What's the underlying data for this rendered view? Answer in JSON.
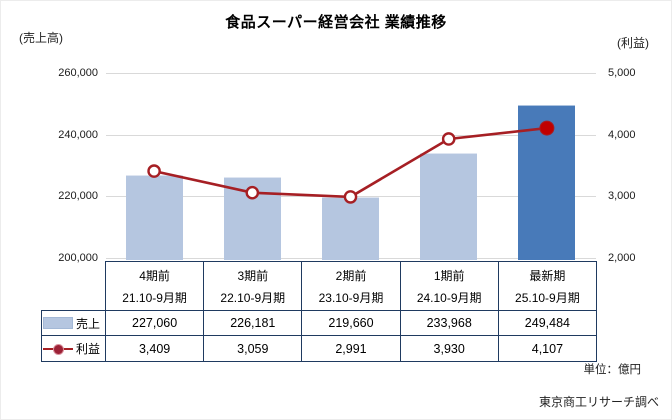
{
  "header": {
    "title": "食品スーパー経営会社 業績推移",
    "left_axis_unit": "(売上高)",
    "right_axis_unit": "(利益)"
  },
  "footer": {
    "unit_note": "単位：億円",
    "source": "東京商工リサーチ調べ"
  },
  "chart_data": {
    "type": "bar+line",
    "categories": [
      "4期前",
      "3期前",
      "2期前",
      "1期前",
      "最新期"
    ],
    "periods": [
      "21.10-9月期",
      "22.10-9月期",
      "23.10-9月期",
      "24.10-9月期",
      "25.10-9月期"
    ],
    "left_axis": {
      "unit_label": "(売上高)",
      "ylim": [
        200000,
        260000
      ],
      "ticks": [
        260000,
        240000,
        220000,
        200000
      ],
      "tick_labels": [
        "260,000",
        "240,000",
        "220,000",
        "200,000"
      ]
    },
    "right_axis": {
      "unit_label": "(利益)",
      "ylim": [
        2000,
        5000
      ],
      "ticks": [
        5000,
        4000,
        3000,
        2000
      ],
      "tick_labels": [
        "5,000",
        "4,000",
        "3,000",
        "2,000"
      ]
    },
    "series": [
      {
        "name": "売上",
        "type": "bar",
        "axis": "left",
        "values": [
          227060,
          226181,
          219660,
          233968,
          249484
        ],
        "value_labels": [
          "227,060",
          "226,181",
          "219,660",
          "233,968",
          "249,484"
        ],
        "bar_color": "#b5c6e0",
        "last_bar_color": "#487ab9"
      },
      {
        "name": "利益",
        "type": "line",
        "axis": "right",
        "values": [
          3409,
          3059,
          2991,
          3930,
          4107
        ],
        "value_labels": [
          "3,409",
          "3,059",
          "2,991",
          "3,930",
          "4,107"
        ],
        "line_color": "#a61f24",
        "marker_fill": "#ffffff",
        "last_marker_fill": "#c00000"
      }
    ],
    "grid": true,
    "gridline_color": "#d9d9d9",
    "table_border_color": "#1f3a60",
    "legend_position": "table-left"
  }
}
